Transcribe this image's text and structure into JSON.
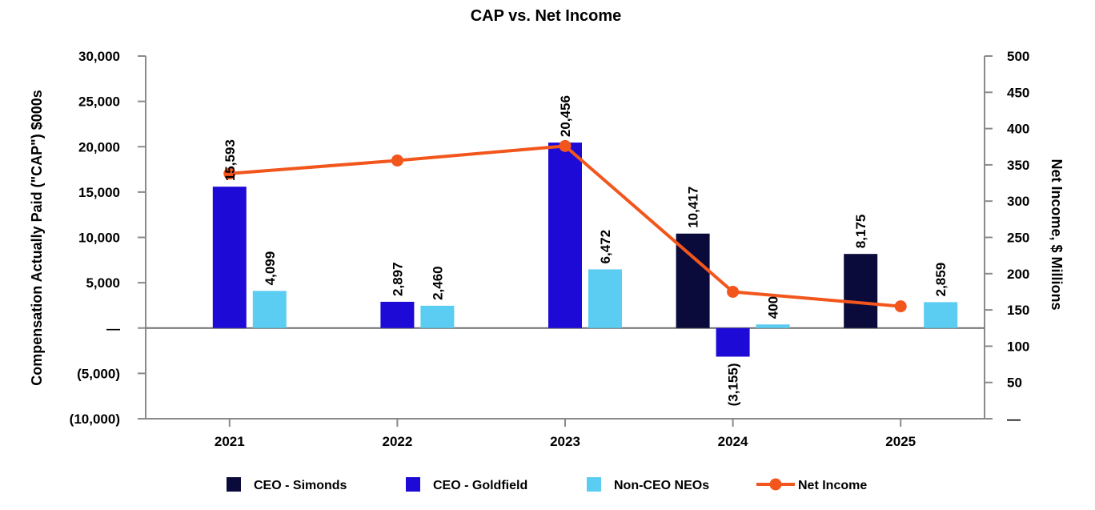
{
  "chart_data": {
    "type": "bar",
    "title": "CAP vs. Net Income",
    "categories": [
      "2021",
      "2022",
      "2023",
      "2024",
      "2025"
    ],
    "y_left": {
      "label": "Compensation Actually Paid (\"CAP\") $000s",
      "range": [
        -10000,
        30000
      ],
      "ticks": [
        -10000,
        -5000,
        0,
        5000,
        10000,
        15000,
        20000,
        25000,
        30000
      ],
      "tick_labels": [
        "(10,000)",
        "(5,000)",
        "—",
        "5,000",
        "10,000",
        "15,000",
        "20,000",
        "25,000",
        "30,000"
      ]
    },
    "y_right": {
      "label": "Net Income, $ Millions",
      "range": [
        0,
        500
      ],
      "ticks": [
        0,
        50,
        100,
        150,
        200,
        250,
        300,
        350,
        400,
        450,
        500
      ],
      "tick_labels": [
        "—",
        "50",
        "100",
        "150",
        "200",
        "250",
        "300",
        "350",
        "400",
        "450",
        "500"
      ]
    },
    "series": [
      {
        "name": "CEO - Simonds",
        "kind": "bar",
        "axis": "left",
        "color": "#0b0b3b",
        "values": [
          null,
          null,
          null,
          10417,
          8175
        ],
        "labels": [
          "",
          "",
          "",
          "10,417",
          "8,175"
        ]
      },
      {
        "name": "CEO - Goldfield",
        "kind": "bar",
        "axis": "left",
        "color": "#1d0ad6",
        "values": [
          15593,
          2897,
          20456,
          -3155,
          null
        ],
        "labels": [
          "15,593",
          "2,897",
          "20,456",
          "(3,155)",
          ""
        ]
      },
      {
        "name": "Non-CEO NEOs",
        "kind": "bar",
        "axis": "left",
        "color": "#5bcdf2",
        "values": [
          4099,
          2460,
          6472,
          400,
          2859
        ],
        "labels": [
          "4,099",
          "2,460",
          "6,472",
          "400",
          "2,859"
        ]
      },
      {
        "name": "Net Income",
        "kind": "line",
        "axis": "right",
        "color": "#f2561c",
        "values": [
          338,
          356,
          376,
          175,
          155
        ]
      }
    ],
    "legend_position": "bottom",
    "grid": false
  }
}
